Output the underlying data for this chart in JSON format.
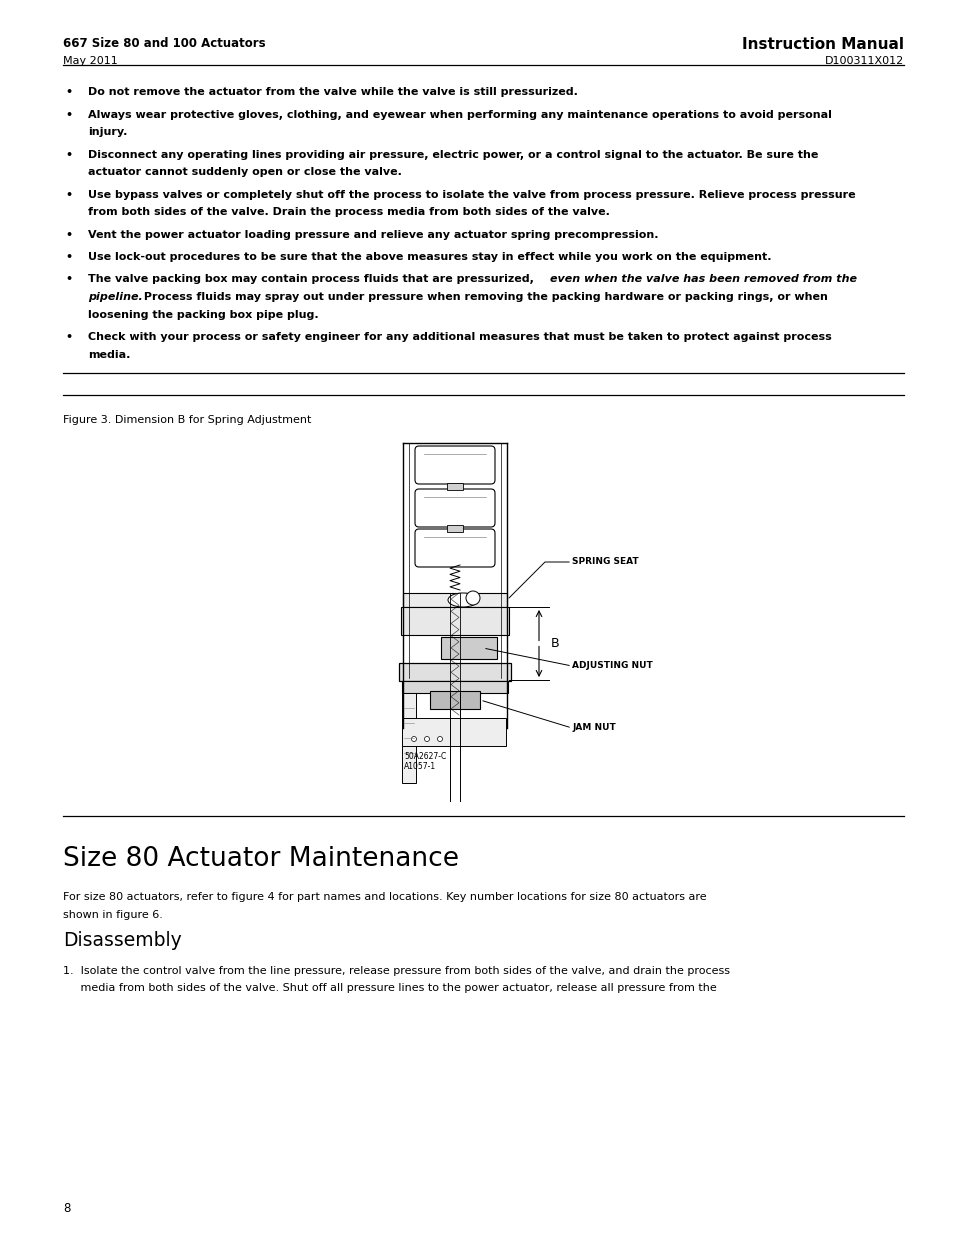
{
  "page_width": 9.54,
  "page_height": 12.35,
  "bg_color": "#ffffff",
  "header_left_bold": "667 Size 80 and 100 Actuators",
  "header_left_sub": "May 2011",
  "header_right_bold": "Instruction Manual",
  "header_right_sub": "D100311X012",
  "figure_caption": "Figure 3. Dimension B for Spring Adjustment",
  "section_title": "Size 80 Actuator Maintenance",
  "section_body_line1": "For size 80 actuators, refer to figure 4 for part names and locations. Key number locations for size 80 actuators are",
  "section_body_line2": "shown in figure 6.",
  "subsection_title": "Disassembly",
  "dis_line1": "1.  Isolate the control valve from the line pressure, release pressure from both sides of the valve, and drain the process",
  "dis_line2": "     media from both sides of the valve. Shut off all pressure lines to the power actuator, release all pressure from the",
  "page_number": "8",
  "bullet_char": "•",
  "bullet_lines": [
    [
      "Do not remove the actuator from the valve while the valve is still pressurized."
    ],
    [
      "Always wear protective gloves, clothing, and eyewear when performing any maintenance operations to avoid personal",
      "injury."
    ],
    [
      "Disconnect any operating lines providing air pressure, electric power, or a control signal to the actuator. Be sure the",
      "actuator cannot suddenly open or close the valve."
    ],
    [
      "Use bypass valves or completely shut off the process to isolate the valve from process pressure. Relieve process pressure",
      "from both sides of the valve. Drain the process media from both sides of the valve."
    ],
    [
      "Vent the power actuator loading pressure and relieve any actuator spring precompression."
    ],
    [
      "Use lock-out procedures to be sure that the above measures stay in effect while you work on the equipment."
    ],
    [
      "special_italic"
    ],
    [
      "Check with your process or safety engineer for any additional measures that must be taken to protect against process",
      "media."
    ]
  ],
  "italic_line1_bold": "The valve packing box may contain process fluids that are pressurized, ",
  "italic_line1_italic": "even when the valve has been removed from the",
  "italic_line2_italic": "pipeline.",
  "italic_line2_bold": " Process fluids may spray out under pressure when removing the packing hardware or packing rings, or when",
  "italic_line3_bold": "loosening the packing box pipe plug."
}
